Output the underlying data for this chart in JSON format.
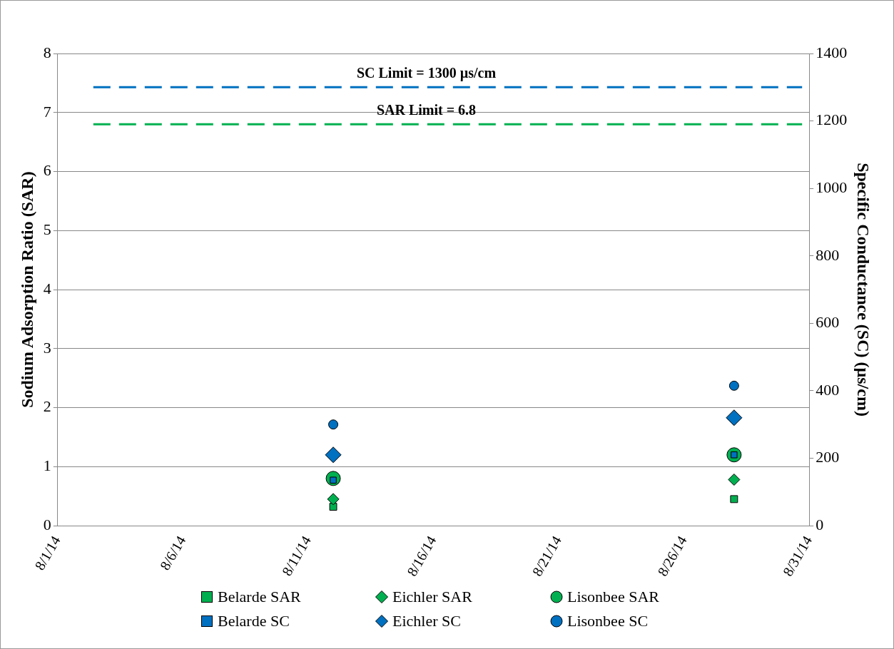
{
  "chart_data": {
    "type": "scatter",
    "ylabel": "Sodium Adsorption Ratio (SAR)",
    "y2label": "Specific Conductance (SC) (µs/cm)",
    "xlim": [
      "--08-01",
      "--08-31"
    ],
    "xticks": [
      {
        "value": "--08-01",
        "label": "8/1/14"
      },
      {
        "value": "--08-06",
        "label": "8/6/14"
      },
      {
        "value": "--08-11",
        "label": "8/11/14"
      },
      {
        "value": "--08-16",
        "label": "8/16/14"
      },
      {
        "value": "--08-21",
        "label": "8/21/14"
      },
      {
        "value": "--08-26",
        "label": "8/26/14"
      },
      {
        "value": "--08-31",
        "label": "8/31/14"
      }
    ],
    "ylim": [
      0,
      8
    ],
    "yticks": [
      0,
      1,
      2,
      3,
      4,
      5,
      6,
      7,
      8
    ],
    "y2lim": [
      0,
      1400
    ],
    "y2ticks": [
      0,
      200,
      400,
      600,
      800,
      1000,
      1200,
      1400
    ],
    "x": [
      "--08-12",
      "--08-28"
    ],
    "grid": "y",
    "legend": "bottom",
    "series": [
      {
        "name": "Belarde SAR",
        "color": "#00b050",
        "marker": "square",
        "values": [
          0.32,
          0.45
        ]
      },
      {
        "name": "Eichler SAR",
        "color": "#00b050",
        "marker": "diamond",
        "values": [
          0.45,
          0.78
        ]
      },
      {
        "name": "Lisonbee SAR",
        "color": "#00b050",
        "marker": "circle",
        "values": [
          0.8,
          1.2
        ]
      },
      {
        "name": "Belarde SC",
        "color": "#0070c0",
        "marker": "square",
        "axis": "y2",
        "values": [
          135,
          210
        ]
      },
      {
        "name": "Eichler SC",
        "color": "#0070c0",
        "marker": "diamond",
        "axis": "y2",
        "values": [
          210,
          320
        ]
      },
      {
        "name": "Lisonbee SC",
        "color": "#0070c0",
        "marker": "circle",
        "axis": "y2",
        "values": [
          300,
          415
        ]
      }
    ],
    "ref_lines": [
      {
        "axis": "y2",
        "value": 1300,
        "label": "SC Limit = 1300 µs/cm",
        "color": "#0070c0",
        "line_style": "dashed"
      },
      {
        "axis": "y",
        "value": 6.8,
        "label": "SAR Limit = 6.8",
        "color": "#00b050",
        "line_style": "dashed"
      }
    ]
  }
}
